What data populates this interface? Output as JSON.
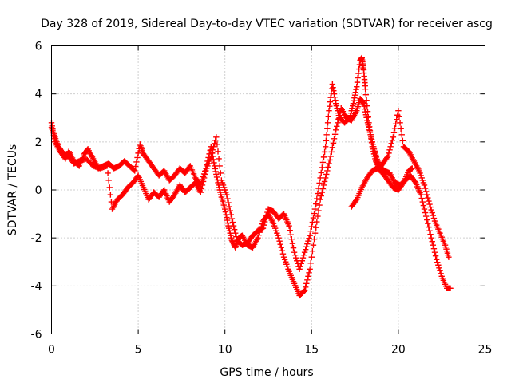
{
  "chart_data": {
    "type": "scatter",
    "title": "Day 328 of 2019, Sidereal Day-to-day VTEC variation (SDTVAR) for receiver ascg",
    "xlabel": "GPS time / hours",
    "ylabel": "SDTVAR / TECUs",
    "xlim": [
      0,
      25
    ],
    "ylim": [
      -6,
      6
    ],
    "xticks": [
      0,
      5,
      10,
      15,
      20,
      25
    ],
    "xtick_labels": [
      "0",
      "5",
      "10",
      "15",
      "20",
      "25"
    ],
    "yticks": [
      -6,
      -4,
      -2,
      0,
      2,
      4,
      6
    ],
    "ytick_labels": [
      "-6",
      "-4",
      "-2",
      "0",
      "2",
      "4",
      "6"
    ],
    "grid": true,
    "marker": "+",
    "series": [
      {
        "name": "SDTVAR trace A",
        "color": "#ff0000",
        "x": [
          0.0,
          0.2,
          0.5,
          0.8,
          1.0,
          1.3,
          1.6,
          1.9,
          2.1,
          2.4,
          2.7,
          3.0,
          3.3,
          3.6,
          3.9,
          4.2,
          4.5,
          4.8,
          5.1,
          5.3,
          5.6,
          5.9,
          6.2,
          6.5,
          6.8,
          7.1,
          7.4,
          7.7,
          8.0,
          8.3,
          8.6,
          8.9,
          9.2,
          9.4,
          9.6,
          9.8,
          10.0,
          10.2,
          10.4,
          10.6,
          10.8,
          11.0,
          11.3,
          11.6,
          11.9,
          12.2,
          12.5,
          12.8,
          13.1,
          13.4,
          13.7,
          14.0,
          14.3,
          14.6,
          14.9,
          15.2,
          15.5,
          15.8,
          16.1,
          16.4,
          16.7,
          17.0,
          17.3,
          17.6,
          17.8,
          18.0,
          18.2,
          18.4,
          18.6,
          18.8,
          19.0,
          19.2,
          19.5,
          19.8,
          20.1,
          20.4,
          20.7,
          21.0,
          21.3,
          21.6,
          21.9,
          22.2,
          22.5,
          22.8,
          23.0
        ],
        "y": [
          2.8,
          2.0,
          1.6,
          1.3,
          1.6,
          1.2,
          1.0,
          1.5,
          1.7,
          1.3,
          0.9,
          1.0,
          1.1,
          0.9,
          1.0,
          1.2,
          1.0,
          0.8,
          1.9,
          1.5,
          1.2,
          0.9,
          0.6,
          0.8,
          0.4,
          0.6,
          0.9,
          0.7,
          1.0,
          0.5,
          0.2,
          0.9,
          1.8,
          1.0,
          0.3,
          -0.3,
          -0.8,
          -1.5,
          -2.1,
          -2.4,
          -2.0,
          -1.9,
          -2.3,
          -2.4,
          -2.0,
          -1.3,
          -1.0,
          -1.4,
          -2.0,
          -2.8,
          -3.4,
          -3.9,
          -4.4,
          -4.2,
          -3.3,
          -1.8,
          -0.4,
          0.5,
          1.4,
          2.5,
          3.4,
          3.0,
          2.9,
          3.3,
          3.8,
          3.6,
          2.9,
          2.3,
          1.7,
          1.2,
          0.9,
          0.8,
          0.7,
          0.3,
          0.2,
          0.4,
          0.6,
          0.3,
          -0.2,
          -1.1,
          -2.0,
          -2.9,
          -3.6,
          -4.1,
          -4.1
        ]
      },
      {
        "name": "SDTVAR trace B",
        "color": "#ff0000",
        "x": [
          0.0,
          0.2,
          0.4,
          0.7,
          1.0,
          1.3,
          1.6,
          2.0,
          2.4,
          2.8,
          3.2,
          3.5,
          3.8,
          4.1,
          4.4,
          4.7,
          5.0,
          5.3,
          5.6,
          5.9,
          6.2,
          6.5,
          6.8,
          7.1,
          7.4,
          7.7,
          8.0,
          8.3,
          8.6,
          8.9,
          9.2,
          9.5,
          9.8,
          10.1,
          10.4,
          10.7,
          11.0,
          11.3,
          11.6,
          11.9,
          12.2,
          12.5,
          12.8,
          13.1,
          13.4,
          13.7,
          14.0,
          14.3,
          14.6,
          14.9,
          15.2,
          15.5,
          15.8,
          16.0,
          16.2,
          16.4,
          16.6,
          16.9,
          17.2,
          17.4,
          17.6,
          17.8,
          17.9,
          18.0,
          18.1,
          18.3,
          18.5,
          18.7,
          18.9,
          19.1,
          19.4,
          19.7,
          20.0,
          20.3,
          20.6,
          20.9,
          21.2,
          21.5,
          21.8,
          22.1,
          22.4,
          22.7,
          22.9
        ],
        "y": [
          2.6,
          2.2,
          1.8,
          1.5,
          1.4,
          1.1,
          1.2,
          1.3,
          1.0,
          0.9,
          1.0,
          -0.8,
          -0.4,
          -0.2,
          0.1,
          0.3,
          0.6,
          0.1,
          -0.4,
          -0.1,
          -0.3,
          0.0,
          -0.5,
          -0.2,
          0.2,
          -0.1,
          0.1,
          0.3,
          -0.1,
          0.8,
          1.4,
          2.2,
          0.4,
          -0.2,
          -1.2,
          -2.1,
          -2.3,
          -2.2,
          -1.9,
          -1.7,
          -1.6,
          -0.8,
          -0.9,
          -1.2,
          -1.0,
          -1.5,
          -2.6,
          -3.3,
          -2.6,
          -1.9,
          -0.8,
          0.5,
          1.8,
          3.3,
          4.4,
          3.6,
          3.0,
          2.8,
          3.0,
          3.6,
          4.3,
          5.4,
          5.5,
          5.0,
          4.2,
          2.8,
          1.8,
          1.2,
          0.9,
          1.1,
          1.4,
          2.2,
          3.3,
          1.8,
          1.6,
          1.2,
          0.8,
          0.2,
          -0.6,
          -1.3,
          -1.8,
          -2.3,
          -2.8
        ]
      },
      {
        "name": "SDTVAR trace C",
        "color": "#ff0000",
        "x": [
          17.3,
          17.6,
          17.9,
          18.2,
          18.5,
          18.8,
          19.1,
          19.4,
          19.7,
          20.0,
          20.3,
          20.6,
          20.8
        ],
        "y": [
          -0.7,
          -0.4,
          0.1,
          0.5,
          0.8,
          0.9,
          0.7,
          0.4,
          0.1,
          0.0,
          0.3,
          0.8,
          0.9
        ]
      }
    ]
  }
}
